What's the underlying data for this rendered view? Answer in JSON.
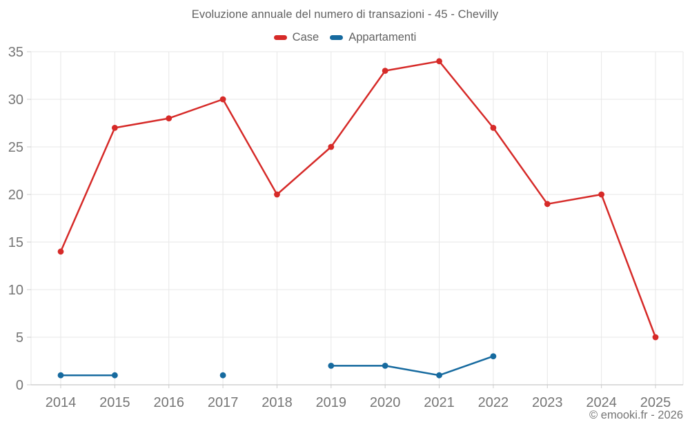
{
  "header": {
    "title": "Evoluzione annuale del numero di transazioni - 45 - Chevilly"
  },
  "footer": {
    "copyright": "© emooki.fr - 2026"
  },
  "chart_data": {
    "type": "line",
    "title": "Evoluzione annuale del numero di transazioni - 45 - Chevilly",
    "categories": [
      "2014",
      "2015",
      "2016",
      "2017",
      "2018",
      "2019",
      "2020",
      "2021",
      "2022",
      "2023",
      "2024",
      "2025"
    ],
    "series": [
      {
        "name": "Case",
        "color": "#d62a28",
        "values": [
          14,
          27,
          28,
          30,
          20,
          25,
          33,
          34,
          27,
          19,
          20,
          5
        ]
      },
      {
        "name": "Appartamenti",
        "color": "#166a9f",
        "values": [
          1,
          1,
          null,
          1,
          null,
          2,
          2,
          1,
          3,
          null,
          null,
          null
        ]
      }
    ],
    "ylim": [
      0,
      35
    ],
    "ytick_step": 5,
    "xlabel": "",
    "ylabel": "",
    "grid": true,
    "legend_position": "top",
    "colors": {
      "grid": "#e7e7e7",
      "axis_line": "#c6c6c6",
      "tick": "#cccccc",
      "tick_text": "#757575"
    }
  }
}
